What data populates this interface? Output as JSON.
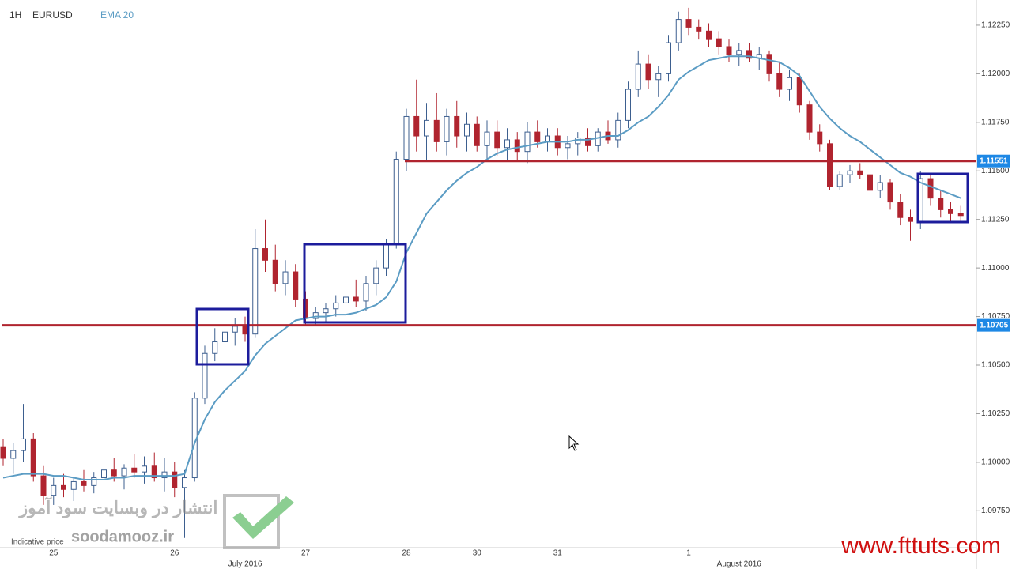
{
  "chart_data": {
    "type": "candlestick",
    "interval": "1H",
    "symbol": "EURUSD",
    "note": "Indicative price",
    "watermark": "soodamooz.ir",
    "watermark_fa": "انتشار در وبسایت سود آموز",
    "site": "www.fttuts.com",
    "categories": [
      null,
      null,
      null,
      null,
      null,
      "25",
      null,
      null,
      null,
      null,
      null,
      null,
      null,
      null,
      null,
      null,
      null,
      "26",
      null,
      null,
      null,
      null,
      null,
      null,
      null,
      null,
      null,
      null,
      null,
      null,
      "27",
      null,
      null,
      null,
      null,
      null,
      null,
      null,
      null,
      null,
      "28",
      null,
      null,
      null,
      null,
      null,
      null,
      "30",
      null,
      null,
      null,
      null,
      null,
      null,
      null,
      "31",
      null,
      null,
      null,
      null,
      null,
      null,
      null,
      null,
      null,
      null,
      null,
      null,
      "1",
      null,
      null,
      null,
      null,
      null,
      null,
      null,
      null,
      null,
      null,
      null,
      null,
      null,
      null,
      null,
      null,
      null,
      null,
      null,
      null,
      null,
      null,
      null,
      null,
      null,
      null,
      null
    ],
    "months": [
      null,
      null,
      null,
      null,
      null,
      null,
      null,
      null,
      null,
      null,
      null,
      null,
      null,
      null,
      null,
      null,
      null,
      null,
      null,
      null,
      null,
      null,
      null,
      null,
      "July 2016",
      null,
      null,
      null,
      null,
      null,
      null,
      null,
      null,
      null,
      null,
      null,
      null,
      null,
      null,
      null,
      null,
      null,
      null,
      null,
      null,
      null,
      null,
      null,
      null,
      null,
      null,
      null,
      null,
      null,
      null,
      null,
      null,
      null,
      null,
      null,
      null,
      null,
      null,
      null,
      null,
      null,
      null,
      null,
      null,
      null,
      null,
      null,
      null,
      "August 2016",
      null,
      null,
      null,
      null,
      null,
      null,
      null,
      null,
      null,
      null,
      null,
      null,
      null,
      null,
      null,
      null,
      null,
      null,
      null,
      null,
      null,
      null
    ],
    "open": [
      1.1008,
      1.1002,
      1.1006,
      1.1012,
      1.0993,
      1.0983,
      1.0988,
      1.0986,
      1.099,
      1.0988,
      1.0992,
      1.0996,
      1.0993,
      1.0997,
      1.0995,
      1.0998,
      1.0992,
      1.0995,
      1.0987,
      1.0992,
      1.1033,
      1.1056,
      1.1062,
      1.1067,
      1.107,
      1.1066,
      1.111,
      1.1104,
      1.1092,
      1.1098,
      1.1084,
      1.1074,
      1.1077,
      1.1079,
      1.1082,
      1.1085,
      1.1083,
      1.1092,
      1.11,
      1.1112,
      1.1156,
      1.1178,
      1.1168,
      1.1176,
      1.1165,
      1.1178,
      1.1168,
      1.1174,
      1.1163,
      1.117,
      1.1162,
      1.1166,
      1.116,
      1.117,
      1.1165,
      1.1168,
      1.1162,
      1.1164,
      1.1167,
      1.1163,
      1.117,
      1.1166,
      1.1176,
      1.1192,
      1.1205,
      1.1197,
      1.12,
      1.1216,
      1.1228,
      1.1224,
      1.1222,
      1.1218,
      1.1214,
      1.121,
      1.1212,
      1.1208,
      1.121,
      1.12,
      1.1192,
      1.1198,
      1.1184,
      1.117,
      1.1164,
      1.1142,
      1.1148,
      1.115,
      1.1148,
      1.114,
      1.1144,
      1.1134,
      1.1126,
      1.1124,
      1.1146,
      1.1136,
      1.113,
      1.1128
    ],
    "high": [
      1.1012,
      1.101,
      1.103,
      1.1015,
      1.0998,
      1.0992,
      1.0994,
      1.0992,
      1.0996,
      1.0995,
      1.1,
      1.1002,
      1.0999,
      1.1004,
      1.1003,
      1.1005,
      1.1002,
      1.1,
      1.0996,
      1.1036,
      1.106,
      1.1069,
      1.1072,
      1.1074,
      1.1075,
      1.112,
      1.1125,
      1.1112,
      1.1104,
      1.1102,
      1.1088,
      1.108,
      1.1082,
      1.1086,
      1.109,
      1.1094,
      1.1096,
      1.1104,
      1.1115,
      1.116,
      1.1182,
      1.1197,
      1.1185,
      1.119,
      1.1182,
      1.1186,
      1.118,
      1.1178,
      1.1176,
      1.1176,
      1.1172,
      1.117,
      1.1175,
      1.1176,
      1.1172,
      1.1172,
      1.1168,
      1.117,
      1.1172,
      1.1172,
      1.1176,
      1.118,
      1.1196,
      1.1212,
      1.121,
      1.1204,
      1.122,
      1.1232,
      1.1234,
      1.1228,
      1.1226,
      1.1222,
      1.1218,
      1.1216,
      1.1216,
      1.1214,
      1.1212,
      1.1206,
      1.1202,
      1.12,
      1.1186,
      1.1174,
      1.1166,
      1.115,
      1.1153,
      1.1154,
      1.1158,
      1.1148,
      1.1146,
      1.1138,
      1.113,
      1.115,
      1.1148,
      1.114,
      1.1134,
      1.1132
    ],
    "low": [
      1.0998,
      1.0994,
      1.1,
      1.099,
      1.0978,
      1.0978,
      1.0982,
      1.098,
      1.0985,
      1.0984,
      1.0988,
      1.099,
      1.0986,
      1.0992,
      1.0989,
      1.099,
      1.0985,
      1.0982,
      1.0961,
      1.099,
      1.103,
      1.1052,
      1.1055,
      1.106,
      1.1062,
      1.1064,
      1.1098,
      1.1088,
      1.1086,
      1.108,
      1.107,
      1.107,
      1.1072,
      1.1075,
      1.1076,
      1.108,
      1.1078,
      1.1086,
      1.1096,
      1.111,
      1.115,
      1.116,
      1.1155,
      1.116,
      1.1158,
      1.1162,
      1.116,
      1.116,
      1.1156,
      1.1158,
      1.1155,
      1.1155,
      1.1154,
      1.1162,
      1.116,
      1.1158,
      1.1156,
      1.1158,
      1.116,
      1.116,
      1.1164,
      1.1162,
      1.1172,
      1.1188,
      1.1192,
      1.1188,
      1.1196,
      1.1212,
      1.122,
      1.1218,
      1.1214,
      1.121,
      1.1206,
      1.1204,
      1.1206,
      1.1202,
      1.1196,
      1.1188,
      1.1186,
      1.118,
      1.1166,
      1.116,
      1.114,
      1.114,
      1.1144,
      1.1146,
      1.1134,
      1.1136,
      1.113,
      1.1122,
      1.1114,
      1.112,
      1.1132,
      1.1126,
      1.1124,
      1.1124
    ],
    "close": [
      1.1002,
      1.1006,
      1.1012,
      1.0993,
      1.0983,
      1.0988,
      1.0986,
      1.099,
      1.0988,
      1.0992,
      1.0996,
      1.0993,
      1.0997,
      1.0995,
      1.0998,
      1.0992,
      1.0995,
      1.0987,
      1.0992,
      1.1033,
      1.1056,
      1.1062,
      1.1067,
      1.107,
      1.1066,
      1.111,
      1.1104,
      1.1092,
      1.1098,
      1.1084,
      1.1074,
      1.1077,
      1.1079,
      1.1082,
      1.1085,
      1.1083,
      1.1092,
      1.11,
      1.1112,
      1.1156,
      1.1178,
      1.1168,
      1.1176,
      1.1165,
      1.1178,
      1.1168,
      1.1174,
      1.1163,
      1.117,
      1.1162,
      1.1166,
      1.116,
      1.117,
      1.1165,
      1.1168,
      1.1162,
      1.1164,
      1.1167,
      1.1163,
      1.117,
      1.1166,
      1.1176,
      1.1192,
      1.1205,
      1.1197,
      1.12,
      1.1216,
      1.1228,
      1.1224,
      1.1222,
      1.1218,
      1.1214,
      1.121,
      1.1212,
      1.1208,
      1.121,
      1.12,
      1.1192,
      1.1198,
      1.1184,
      1.117,
      1.1164,
      1.1142,
      1.1148,
      1.115,
      1.1148,
      1.114,
      1.1144,
      1.1134,
      1.1126,
      1.1124,
      1.1146,
      1.1136,
      1.113,
      1.1128,
      1.1127
    ],
    "ema": {
      "name": "EMA 20",
      "color": "#5b9cc4",
      "values": [
        1.0992,
        1.0993,
        1.0994,
        1.0994,
        1.0994,
        1.0993,
        1.0993,
        1.0992,
        1.0991,
        1.0991,
        1.0991,
        1.0992,
        1.0992,
        1.0993,
        1.0993,
        1.0993,
        1.0993,
        1.0993,
        1.0994,
        1.101,
        1.1022,
        1.1031,
        1.1037,
        1.1042,
        1.1047,
        1.1055,
        1.1061,
        1.1065,
        1.1069,
        1.1073,
        1.1074,
        1.1075,
        1.1075,
        1.1076,
        1.1076,
        1.1077,
        1.1079,
        1.1081,
        1.1085,
        1.1093,
        1.1108,
        1.1118,
        1.1128,
        1.1134,
        1.114,
        1.1145,
        1.1149,
        1.1152,
        1.1156,
        1.1159,
        1.1161,
        1.1162,
        1.1163,
        1.1164,
        1.1165,
        1.1165,
        1.1165,
        1.1166,
        1.1166,
        1.1167,
        1.1168,
        1.1168,
        1.1171,
        1.1175,
        1.1178,
        1.1183,
        1.1189,
        1.1197,
        1.1201,
        1.1204,
        1.1207,
        1.1208,
        1.1209,
        1.1209,
        1.1209,
        1.1208,
        1.1207,
        1.1206,
        1.1203,
        1.1199,
        1.1191,
        1.1183,
        1.1177,
        1.1172,
        1.1168,
        1.1165,
        1.1161,
        1.1157,
        1.1153,
        1.1149,
        1.1147,
        1.1144,
        1.1142,
        1.114,
        1.1138,
        1.1136
      ]
    },
    "up_color": "#3d5f8f",
    "down_color": "#b0242f",
    "levels": [
      1.11551,
      1.10705
    ],
    "level_color": "#b0242f",
    "ylim": [
      1.0956,
      1.1238
    ],
    "yticks": [
      {
        "value": 1.0975,
        "label": "1.09750"
      },
      {
        "value": 1.1,
        "label": "1.10000"
      },
      {
        "value": 1.1025,
        "label": "1.10250"
      },
      {
        "value": 1.105,
        "label": "1.10500"
      },
      {
        "value": 1.1075,
        "label": "1.10750"
      },
      {
        "value": 1.11,
        "label": "1.11000"
      },
      {
        "value": 1.1125,
        "label": "1.11250"
      },
      {
        "value": 1.115,
        "label": "1.11500"
      },
      {
        "value": 1.1175,
        "label": "1.11750"
      },
      {
        "value": 1.12,
        "label": "1.12000"
      },
      {
        "value": 1.1225,
        "label": "1.12250"
      }
    ]
  }
}
